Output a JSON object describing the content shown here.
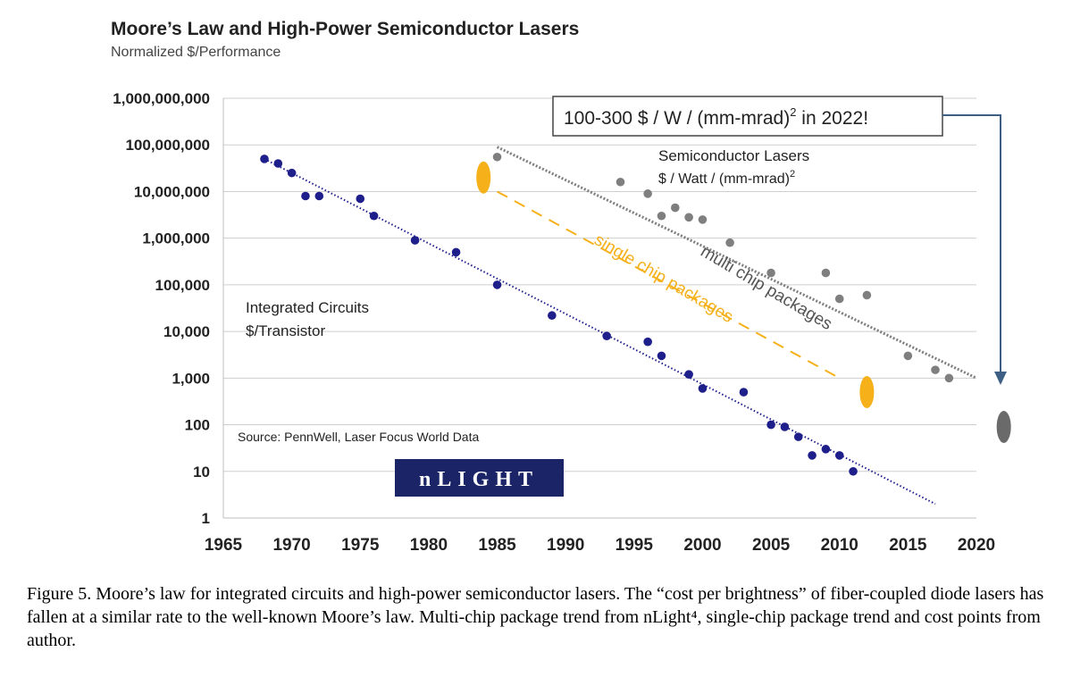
{
  "chart_data": {
    "type": "scatter",
    "title": "Moore’s Law and High-Power Semiconductor Lasers",
    "subtitle": "Normalized $/Performance",
    "y_scale": "log",
    "ylim": [
      1,
      1000000000
    ],
    "xlim": [
      1965,
      2020
    ],
    "x_ticks": [
      "1965",
      "1970",
      "1975",
      "1980",
      "1985",
      "1990",
      "1995",
      "2000",
      "2005",
      "2010",
      "2015",
      "2020"
    ],
    "y_ticks": [
      "1",
      "10",
      "100",
      "1,000",
      "10,000",
      "100,000",
      "1,000,000",
      "10,000,000",
      "100,000,000",
      "1,000,000,000"
    ],
    "grid": "horizontal",
    "colors": {
      "integrated_circuits": "#1f1f8c",
      "multi_chip": "#7f7f7f",
      "single_chip": "#f5b01a",
      "grid": "#cfcfcf"
    },
    "series": [
      {
        "key": "integrated_circuits",
        "label_line1": "Integrated Circuits",
        "label_line2": "$/Transistor",
        "points": [
          [
            1968,
            50000000
          ],
          [
            1969,
            40000000
          ],
          [
            1970,
            25000000
          ],
          [
            1971,
            8000000
          ],
          [
            1972,
            8000000
          ],
          [
            1975,
            7000000
          ],
          [
            1976,
            3000000
          ],
          [
            1979,
            900000
          ],
          [
            1982,
            500000
          ],
          [
            1985,
            100000
          ],
          [
            1989,
            22000
          ],
          [
            1993,
            8000
          ],
          [
            1996,
            6000
          ],
          [
            1997,
            3000
          ],
          [
            1999,
            1200
          ],
          [
            2000,
            600
          ],
          [
            2003,
            500
          ],
          [
            2005,
            100
          ],
          [
            2006,
            90
          ],
          [
            2007,
            55
          ],
          [
            2008,
            22
          ],
          [
            2009,
            30
          ],
          [
            2010,
            22
          ],
          [
            2011,
            10
          ]
        ],
        "trend": [
          [
            1968,
            50000000
          ],
          [
            2017,
            2
          ]
        ]
      },
      {
        "key": "multi_chip",
        "label_line1": "Semiconductor Lasers",
        "label_line2": "$ / Watt / (mm-mrad)",
        "label_superscript": "2",
        "trend_label": "multi chip packages",
        "points": [
          [
            1985,
            55000000
          ],
          [
            1994,
            16000000
          ],
          [
            1996,
            9000000
          ],
          [
            1997,
            3000000
          ],
          [
            1998,
            4500000
          ],
          [
            1999,
            2800000
          ],
          [
            2000,
            2500000
          ],
          [
            2002,
            800000
          ],
          [
            2005,
            180000
          ],
          [
            2009,
            180000
          ],
          [
            2010,
            50000
          ],
          [
            2012,
            60000
          ],
          [
            2015,
            3000
          ],
          [
            2017,
            1500
          ],
          [
            2018,
            1000
          ]
        ],
        "trend": [
          [
            1985,
            90000000
          ],
          [
            2020,
            1000
          ]
        ],
        "endpoint": [
          2022,
          90
        ]
      },
      {
        "key": "single_chip",
        "trend_label": "single chip packages",
        "points": [
          [
            1984,
            20000000
          ],
          [
            2012,
            500
          ]
        ],
        "trend": [
          [
            1985,
            10000000
          ],
          [
            2010,
            1000
          ]
        ]
      }
    ],
    "annotation": {
      "text": "100-300 $ / W / (mm-mrad)",
      "superscript": "2",
      "suffix": " in 2022!"
    },
    "source": "Source: PennWell, Laser Focus World Data",
    "logo_text": "nLIGHT"
  },
  "caption": "Figure 5. Moore’s law for integrated circuits and high-power semiconductor lasers. The “cost per brightness” of fiber-coupled diode lasers has fallen at a similar rate to the well-known Moore’s law. Multi-chip package trend from nLight⁴, single-chip package trend and cost points from author."
}
